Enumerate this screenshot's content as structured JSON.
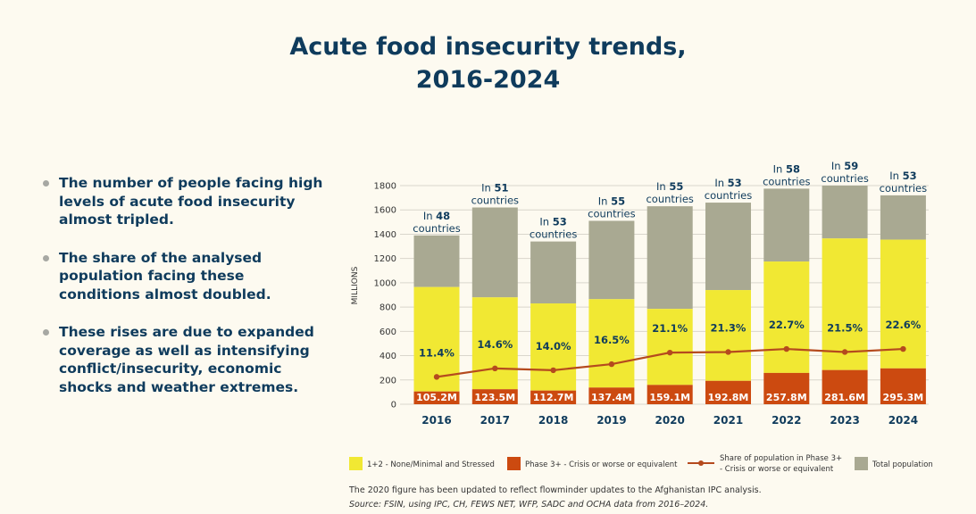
{
  "title": {
    "line1": "Acute food insecurity trends,",
    "line2": "2016-2024"
  },
  "bullets": [
    "The number of people facing high levels of acute food insecurity almost tripled.",
    "The share of the analysed population facing these conditions almost doubled.",
    "These rises are due to expanded coverage as well as intensifying conflict/insecurity, economic shocks and weather extremes."
  ],
  "chart_data": {
    "type": "bar",
    "ylabel": "MILLIONS",
    "ylim": [
      0,
      1800
    ],
    "yticks": [
      0,
      200,
      400,
      600,
      800,
      1000,
      1200,
      1400,
      1600,
      1800
    ],
    "grid": true,
    "categories": [
      "2016",
      "2017",
      "2018",
      "2019",
      "2020",
      "2021",
      "2022",
      "2023",
      "2024"
    ],
    "series": [
      {
        "name": "Total population",
        "color": "#a9a992",
        "values": [
          1390,
          1620,
          1340,
          1510,
          1630,
          1660,
          1775,
          1800,
          1720
        ]
      },
      {
        "name": "1+2 - None/Minimal and Stressed",
        "color": "#f1e833",
        "values": [
          965,
          880,
          830,
          865,
          785,
          940,
          1175,
          1365,
          1355
        ]
      },
      {
        "name": "Phase 3+ - Crisis or worse or equivalent",
        "color": "#cc4a10",
        "values": [
          105.2,
          123.5,
          112.7,
          137.4,
          159.1,
          192.8,
          257.8,
          281.6,
          295.3
        ]
      }
    ],
    "phase3_labels": [
      "105.2M",
      "123.5M",
      "112.7M",
      "137.4M",
      "159.1M",
      "192.8M",
      "257.8M",
      "281.6M",
      "295.3M"
    ],
    "share_series": {
      "name": "Share of population in Phase 3+ - Crisis or worse or equivalent",
      "color": "#b54a1e",
      "percent": [
        11.4,
        14.6,
        14.0,
        16.5,
        21.1,
        21.3,
        22.7,
        21.5,
        22.6
      ],
      "plotted_values": [
        225,
        295,
        280,
        330,
        425,
        430,
        455,
        430,
        455
      ],
      "labels": [
        "11.4%",
        "14.6%",
        "14.0%",
        "16.5%",
        "21.1%",
        "21.3%",
        "22.7%",
        "21.5%",
        "22.6%"
      ]
    },
    "country_counts": [
      "48",
      "51",
      "53",
      "55",
      "55",
      "53",
      "58",
      "59",
      "53"
    ],
    "country_prefix": "In",
    "country_suffix": "countries",
    "legend": [
      {
        "label": "1+2 - None/Minimal and Stressed",
        "kind": "box",
        "color": "#f1e833"
      },
      {
        "label": "Phase 3+ - Crisis or worse or equivalent",
        "kind": "box",
        "color": "#cc4a10"
      },
      {
        "label": "Share of population in Phase 3+",
        "label2": "- Crisis or worse or equivalent",
        "kind": "line",
        "color": "#b54a1e"
      },
      {
        "label": "Total population",
        "kind": "box",
        "color": "#a9a992"
      }
    ]
  },
  "footnote": "The 2020 figure has been updated to reflect flowminder updates to the Afghanistan IPC analysis.",
  "source": "Source: FSIN, using IPC, CH, FEWS NET, WFP, SADC and OCHA data from 2016–2024."
}
